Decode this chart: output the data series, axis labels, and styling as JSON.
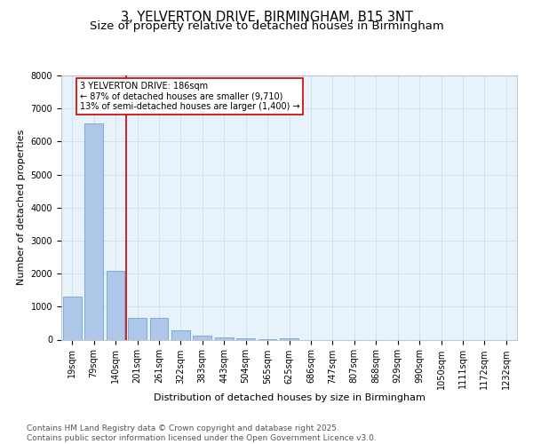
{
  "title_line1": "3, YELVERTON DRIVE, BIRMINGHAM, B15 3NT",
  "title_line2": "Size of property relative to detached houses in Birmingham",
  "xlabel": "Distribution of detached houses by size in Birmingham",
  "ylabel": "Number of detached properties",
  "categories": [
    "19sqm",
    "79sqm",
    "140sqm",
    "201sqm",
    "261sqm",
    "322sqm",
    "383sqm",
    "443sqm",
    "504sqm",
    "565sqm",
    "625sqm",
    "686sqm",
    "747sqm",
    "807sqm",
    "868sqm",
    "929sqm",
    "990sqm",
    "1050sqm",
    "1111sqm",
    "1172sqm",
    "1232sqm"
  ],
  "values": [
    1300,
    6550,
    2090,
    650,
    650,
    290,
    120,
    60,
    30,
    10,
    50,
    0,
    0,
    0,
    0,
    0,
    0,
    0,
    0,
    0,
    0
  ],
  "bar_color": "#aec6e8",
  "bar_edge_color": "#5b9bd5",
  "vline_color": "#cc0000",
  "vline_x": 2.5,
  "annotation_line1": "3 YELVERTON DRIVE: 186sqm",
  "annotation_line2": "← 87% of detached houses are smaller (9,710)",
  "annotation_line3": "13% of semi-detached houses are larger (1,400) →",
  "ann_box_color": "#cc0000",
  "ylim": [
    0,
    8000
  ],
  "yticks": [
    0,
    1000,
    2000,
    3000,
    4000,
    5000,
    6000,
    7000,
    8000
  ],
  "grid_color": "#cce0f0",
  "background_color": "#e8f2fa",
  "footer_text": "Contains HM Land Registry data © Crown copyright and database right 2025.\nContains public sector information licensed under the Open Government Licence v3.0.",
  "title_fontsize": 10.5,
  "subtitle_fontsize": 9.5,
  "axis_label_fontsize": 8,
  "tick_fontsize": 7,
  "annotation_fontsize": 7,
  "footer_fontsize": 6.5
}
